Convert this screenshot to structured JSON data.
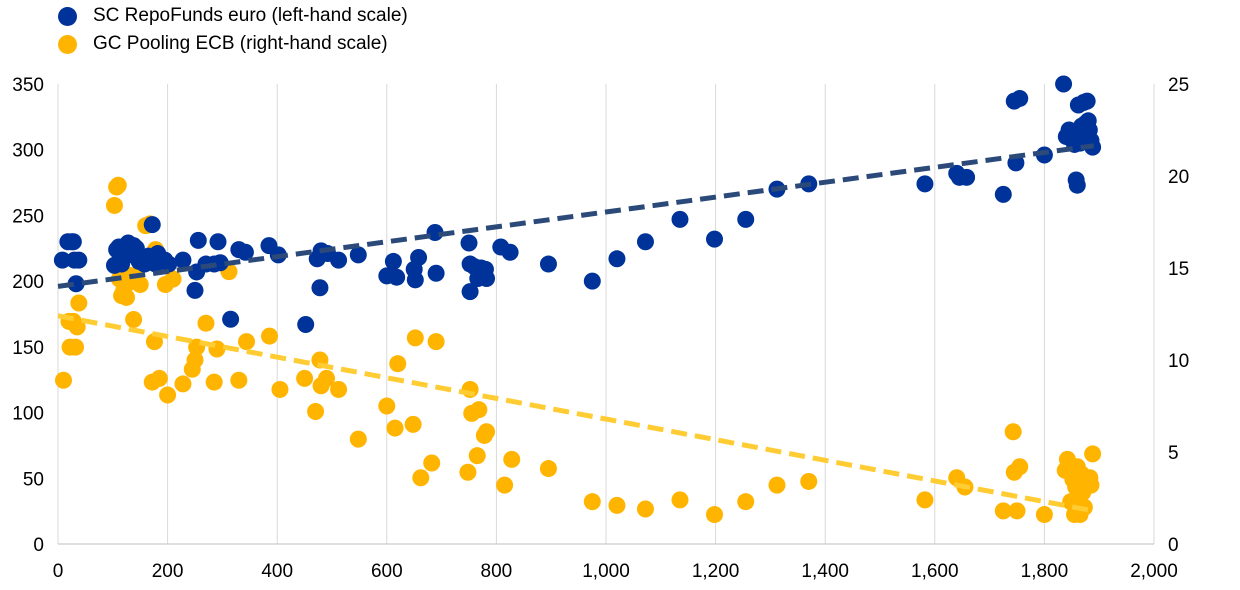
{
  "chart_data": {
    "type": "scatter",
    "x_axis": {
      "range": [
        0,
        2000
      ],
      "ticks": [
        0,
        200,
        400,
        600,
        800,
        1000,
        1200,
        1400,
        1600,
        1800,
        2000
      ],
      "tick_labels": [
        "0",
        "200",
        "400",
        "600",
        "800",
        "1,000",
        "1,200",
        "1,400",
        "1,600",
        "1,800",
        "2,000"
      ]
    },
    "y_left": {
      "range": [
        0,
        350
      ],
      "ticks": [
        0,
        50,
        100,
        150,
        200,
        250,
        300,
        350
      ],
      "tick_labels": [
        "0",
        "50",
        "100",
        "150",
        "200",
        "250",
        "300",
        "350"
      ]
    },
    "y_right": {
      "range": [
        0,
        25
      ],
      "ticks": [
        0,
        5,
        10,
        15,
        20,
        25
      ],
      "tick_labels": [
        "0",
        "5",
        "10",
        "15",
        "20",
        "25"
      ]
    },
    "grid": "vertical",
    "legend_position": "top-left",
    "series": [
      {
        "name": "SC RepoFunds euro (left-hand scale)",
        "axis": "left",
        "color": "#003399",
        "points": [
          [
            8,
            216
          ],
          [
            18,
            230
          ],
          [
            25,
            230
          ],
          [
            28,
            230
          ],
          [
            30,
            216
          ],
          [
            33,
            198
          ],
          [
            38,
            216
          ],
          [
            103,
            212
          ],
          [
            107,
            224
          ],
          [
            111,
            226
          ],
          [
            113,
            220
          ],
          [
            116,
            213
          ],
          [
            120,
            223
          ],
          [
            128,
            229
          ],
          [
            135,
            220
          ],
          [
            138,
            227
          ],
          [
            143,
            225
          ],
          [
            148,
            215
          ],
          [
            158,
            213
          ],
          [
            165,
            219
          ],
          [
            172,
            243
          ],
          [
            178,
            213
          ],
          [
            182,
            221
          ],
          [
            195,
            216
          ],
          [
            202,
            213
          ],
          [
            228,
            216
          ],
          [
            250,
            193
          ],
          [
            253,
            207
          ],
          [
            256,
            231
          ],
          [
            270,
            213
          ],
          [
            285,
            213
          ],
          [
            292,
            230
          ],
          [
            296,
            214
          ],
          [
            315,
            171
          ],
          [
            330,
            224
          ],
          [
            342,
            222
          ],
          [
            385,
            227
          ],
          [
            402,
            220
          ],
          [
            452,
            167
          ],
          [
            473,
            217
          ],
          [
            478,
            195
          ],
          [
            480,
            223
          ],
          [
            492,
            221
          ],
          [
            512,
            216
          ],
          [
            548,
            220
          ],
          [
            600,
            204
          ],
          [
            612,
            215
          ],
          [
            618,
            203
          ],
          [
            650,
            209
          ],
          [
            652,
            201
          ],
          [
            658,
            218
          ],
          [
            690,
            206
          ],
          [
            688,
            237
          ],
          [
            750,
            229
          ],
          [
            752,
            213
          ],
          [
            752,
            192
          ],
          [
            760,
            211
          ],
          [
            766,
            202
          ],
          [
            772,
            210
          ],
          [
            780,
            209
          ],
          [
            782,
            202
          ],
          [
            808,
            226
          ],
          [
            825,
            222
          ],
          [
            895,
            213
          ],
          [
            975,
            200
          ],
          [
            1020,
            217
          ],
          [
            1072,
            230
          ],
          [
            1135,
            247
          ],
          [
            1198,
            232
          ],
          [
            1255,
            247
          ],
          [
            1312,
            270
          ],
          [
            1370,
            274
          ],
          [
            1582,
            274
          ],
          [
            1640,
            282
          ],
          [
            1645,
            279
          ],
          [
            1658,
            279
          ],
          [
            1725,
            266
          ],
          [
            1748,
            290
          ],
          [
            1745,
            337
          ],
          [
            1755,
            339
          ],
          [
            1800,
            296
          ],
          [
            1835,
            350
          ],
          [
            1840,
            310
          ],
          [
            1845,
            315
          ],
          [
            1850,
            308
          ],
          [
            1855,
            304
          ],
          [
            1858,
            277
          ],
          [
            1860,
            273
          ],
          [
            1862,
            334
          ],
          [
            1865,
            305
          ],
          [
            1868,
            318
          ],
          [
            1870,
            308
          ],
          [
            1872,
            336
          ],
          [
            1875,
            320
          ],
          [
            1878,
            337
          ],
          [
            1880,
            322
          ],
          [
            1882,
            315
          ],
          [
            1885,
            307
          ],
          [
            1888,
            302
          ]
        ],
        "trendline": [
          [
            0,
            196
          ],
          [
            1890,
            303
          ]
        ]
      },
      {
        "name": "GC Pooling ECB (right-hand scale)",
        "axis": "right",
        "color": "#ffb400",
        "points": [
          [
            10,
            8.9
          ],
          [
            20,
            12.1
          ],
          [
            22,
            10.7
          ],
          [
            28,
            12.1
          ],
          [
            32,
            10.7
          ],
          [
            35,
            11.8
          ],
          [
            38,
            13.1
          ],
          [
            103,
            18.4
          ],
          [
            107,
            19.4
          ],
          [
            110,
            19.5
          ],
          [
            112,
            14.4
          ],
          [
            116,
            13.5
          ],
          [
            120,
            13.8
          ],
          [
            125,
            13.4
          ],
          [
            128,
            14.2
          ],
          [
            131,
            14.6
          ],
          [
            138,
            12.2
          ],
          [
            143,
            14.6
          ],
          [
            150,
            14.1
          ],
          [
            160,
            17.3
          ],
          [
            168,
            17.4
          ],
          [
            172,
            8.8
          ],
          [
            176,
            11.0
          ],
          [
            178,
            16.0
          ],
          [
            185,
            9.0
          ],
          [
            196,
            14.1
          ],
          [
            200,
            8.1
          ],
          [
            210,
            14.4
          ],
          [
            228,
            8.7
          ],
          [
            245,
            9.5
          ],
          [
            250,
            10.0
          ],
          [
            253,
            10.7
          ],
          [
            270,
            12.0
          ],
          [
            285,
            8.8
          ],
          [
            290,
            10.6
          ],
          [
            312,
            14.8
          ],
          [
            330,
            8.9
          ],
          [
            344,
            11.0
          ],
          [
            386,
            11.3
          ],
          [
            405,
            8.4
          ],
          [
            450,
            9.0
          ],
          [
            470,
            7.2
          ],
          [
            478,
            10.0
          ],
          [
            480,
            8.6
          ],
          [
            490,
            9.0
          ],
          [
            512,
            8.4
          ],
          [
            548,
            5.7
          ],
          [
            600,
            7.5
          ],
          [
            615,
            6.3
          ],
          [
            620,
            9.8
          ],
          [
            648,
            6.5
          ],
          [
            652,
            11.2
          ],
          [
            662,
            3.6
          ],
          [
            682,
            4.4
          ],
          [
            690,
            11.0
          ],
          [
            748,
            3.9
          ],
          [
            752,
            8.4
          ],
          [
            755,
            7.1
          ],
          [
            765,
            4.8
          ],
          [
            768,
            7.3
          ],
          [
            778,
            5.9
          ],
          [
            782,
            6.1
          ],
          [
            815,
            3.2
          ],
          [
            828,
            4.6
          ],
          [
            895,
            4.1
          ],
          [
            975,
            2.3
          ],
          [
            1020,
            2.1
          ],
          [
            1072,
            1.9
          ],
          [
            1135,
            2.4
          ],
          [
            1198,
            1.6
          ],
          [
            1255,
            2.3
          ],
          [
            1312,
            3.2
          ],
          [
            1370,
            3.4
          ],
          [
            1582,
            2.4
          ],
          [
            1640,
            3.6
          ],
          [
            1655,
            3.1
          ],
          [
            1725,
            1.8
          ],
          [
            1743,
            6.1
          ],
          [
            1745,
            3.9
          ],
          [
            1750,
            1.8
          ],
          [
            1755,
            4.2
          ],
          [
            1800,
            1.6
          ],
          [
            1838,
            4.0
          ],
          [
            1842,
            4.6
          ],
          [
            1848,
            2.3
          ],
          [
            1852,
            3.5
          ],
          [
            1855,
            1.6
          ],
          [
            1857,
            3.1
          ],
          [
            1860,
            4.2
          ],
          [
            1862,
            2.2
          ],
          [
            1865,
            1.6
          ],
          [
            1868,
            3.8
          ],
          [
            1870,
            2.8
          ],
          [
            1873,
            2.0
          ],
          [
            1875,
            3.6
          ],
          [
            1880,
            3.3
          ],
          [
            1883,
            3.6
          ],
          [
            1885,
            3.2
          ],
          [
            1888,
            4.9
          ]
        ],
        "trendline": [
          [
            0,
            12.4
          ],
          [
            1890,
            1.8
          ]
        ]
      }
    ]
  }
}
